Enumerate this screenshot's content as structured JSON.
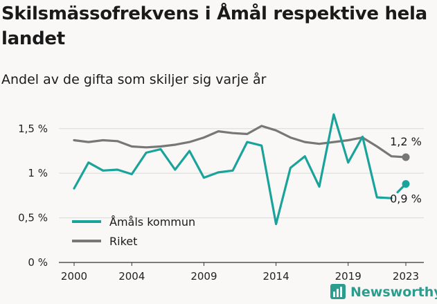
{
  "title": "Skilsmässofrekvens i Åmål respektive hela landet",
  "subtitle": "Andel av de gifta som skiljer sig varje år",
  "brand": "Newsworthy",
  "colors": {
    "kommun": "#1aa39a",
    "riket": "#777777",
    "grid": "#d9d9d9",
    "background": "#f9f8f6",
    "brand": "#2a9d8f"
  },
  "chart_data": {
    "type": "line",
    "x": [
      2000,
      2001,
      2002,
      2003,
      2004,
      2005,
      2006,
      2007,
      2008,
      2009,
      2010,
      2011,
      2012,
      2013,
      2014,
      2015,
      2016,
      2017,
      2018,
      2019,
      2020,
      2021,
      2022,
      2023
    ],
    "xticks": [
      2000,
      2004,
      2009,
      2014,
      2019,
      2023
    ],
    "xtick_labels": [
      "2000",
      "2004",
      "2009",
      "2014",
      "2019",
      "2023"
    ],
    "ylim": [
      0,
      1.7
    ],
    "yticks": [
      0,
      0.5,
      1,
      1.5
    ],
    "ytick_labels": [
      "0 %",
      "0,5 %",
      "1 %",
      "1,5 %"
    ],
    "grid": true,
    "legend_position": "bottom-left",
    "series": [
      {
        "name": "Åmåls kommun",
        "color": "#1aa39a",
        "values": [
          0.83,
          1.12,
          1.03,
          1.04,
          0.99,
          1.23,
          1.27,
          1.04,
          1.25,
          0.95,
          1.01,
          1.03,
          1.35,
          1.31,
          0.43,
          1.06,
          1.19,
          0.85,
          1.66,
          1.12,
          1.41,
          0.73,
          0.72,
          0.88
        ],
        "end_label": "0,9 %",
        "gap_after_index": 22
      },
      {
        "name": "Riket",
        "color": "#777777",
        "values": [
          1.37,
          1.35,
          1.37,
          1.36,
          1.3,
          1.29,
          1.3,
          1.32,
          1.35,
          1.4,
          1.47,
          1.45,
          1.44,
          1.53,
          1.48,
          1.4,
          1.35,
          1.33,
          1.35,
          1.37,
          1.4,
          1.3,
          1.19,
          1.18
        ],
        "end_label": "1,2 %"
      }
    ]
  }
}
